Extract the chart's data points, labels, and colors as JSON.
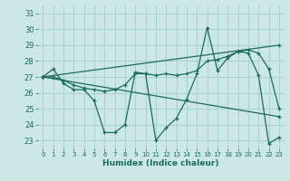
{
  "xlabel": "Humidex (Indice chaleur)",
  "ylabel": "",
  "background_color": "#cce8e4",
  "grid_color": "#aad4ce",
  "line_color": "#1a6b5a",
  "xlim": [
    -0.5,
    23.5
  ],
  "ylim": [
    22.5,
    31.5
  ],
  "yticks": [
    23,
    24,
    25,
    26,
    27,
    28,
    29,
    30,
    31
  ],
  "xticks": [
    0,
    1,
    2,
    3,
    4,
    5,
    6,
    7,
    8,
    9,
    10,
    11,
    12,
    13,
    14,
    15,
    16,
    17,
    18,
    19,
    20,
    21,
    22,
    23
  ],
  "series": [
    {
      "x": [
        0,
        1,
        2,
        3,
        4,
        5,
        6,
        7,
        8,
        9,
        10,
        11,
        12,
        13,
        14,
        15,
        16,
        17,
        18,
        19,
        20,
        21,
        22,
        23
      ],
      "y": [
        27.0,
        27.5,
        26.6,
        26.2,
        26.2,
        25.5,
        23.5,
        23.5,
        24.0,
        27.3,
        27.2,
        23.0,
        23.8,
        24.4,
        25.6,
        27.2,
        30.1,
        27.4,
        28.2,
        28.6,
        28.5,
        27.1,
        22.8,
        23.2
      ]
    },
    {
      "x": [
        0,
        1,
        2,
        3,
        4,
        5,
        6,
        7,
        8,
        9,
        10,
        11,
        12,
        13,
        14,
        15,
        16,
        17,
        18,
        19,
        20,
        21,
        22,
        23
      ],
      "y": [
        27.0,
        27.0,
        26.8,
        26.5,
        26.3,
        26.2,
        26.1,
        26.2,
        26.5,
        27.2,
        27.2,
        27.1,
        27.2,
        27.1,
        27.2,
        27.4,
        28.0,
        28.1,
        28.3,
        28.6,
        28.7,
        28.5,
        27.5,
        25.0
      ]
    },
    {
      "x": [
        0,
        23
      ],
      "y": [
        27.0,
        24.5
      ]
    },
    {
      "x": [
        0,
        23
      ],
      "y": [
        27.0,
        29.0
      ]
    }
  ]
}
